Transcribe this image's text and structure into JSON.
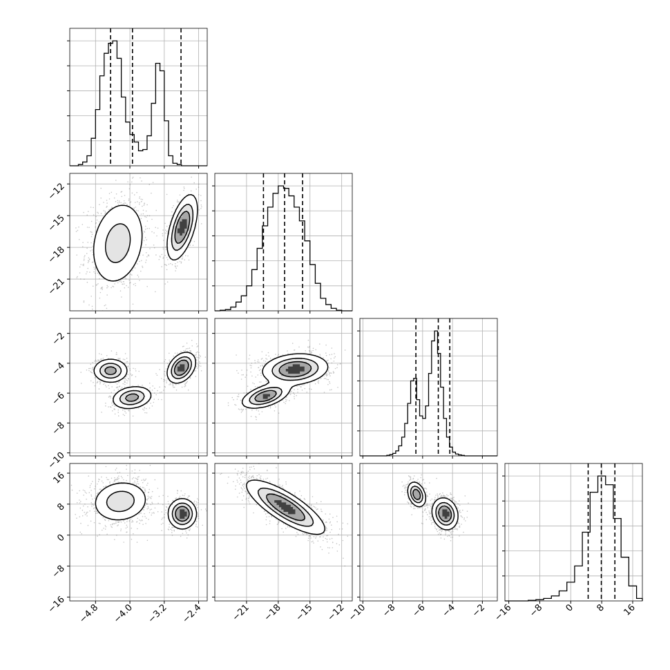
{
  "chart_data": {
    "type": "corner",
    "title": "",
    "grid": true,
    "parameters": [
      {
        "label": "",
        "range": [
          -5.4,
          -2.2
        ],
        "ticks": [
          -4.8,
          -4.0,
          -3.2,
          -2.4
        ],
        "tick_labels": [
          "−4.8",
          "−4.0",
          "−3.2",
          "−2.4"
        ]
      },
      {
        "label": "",
        "range": [
          -24.0,
          -11.0
        ],
        "ticks": [
          -21,
          -18,
          -15,
          -12
        ],
        "tick_labels": [
          "−21",
          "−18",
          "−15",
          "−12"
        ]
      },
      {
        "label": "",
        "range": [
          -10.2,
          -1.0
        ],
        "ticks": [
          -10,
          -8,
          -6,
          -4,
          -2
        ],
        "tick_labels": [
          "−10",
          "−8",
          "−6",
          "−4",
          "−2"
        ]
      },
      {
        "label": "",
        "range": [
          -17.0,
          18.5
        ],
        "ticks": [
          -16,
          -8,
          0,
          8,
          16
        ],
        "tick_labels": [
          "−16",
          "−8",
          "0",
          "8",
          "16"
        ]
      }
    ],
    "histograms": [
      {
        "param": 0,
        "bin_edges": [
          -5.4,
          -5.3,
          -5.2,
          -5.1,
          -5.0,
          -4.9,
          -4.8,
          -4.7,
          -4.6,
          -4.5,
          -4.4,
          -4.3,
          -4.2,
          -4.1,
          -4.0,
          -3.9,
          -3.8,
          -3.7,
          -3.6,
          -3.5,
          -3.4,
          -3.3,
          -3.2,
          -3.1,
          -3.0,
          -2.9,
          -2.8,
          -2.7,
          -2.6,
          -2.5,
          -2.4,
          -2.3,
          -2.2
        ],
        "counts": [
          0,
          0,
          0.01,
          0.03,
          0.08,
          0.22,
          0.45,
          0.72,
          0.9,
          0.98,
          1.0,
          0.86,
          0.55,
          0.35,
          0.25,
          0.19,
          0.12,
          0.13,
          0.24,
          0.5,
          0.82,
          0.76,
          0.36,
          0.08,
          0.02,
          0.01,
          0,
          0,
          0,
          0,
          0,
          0
        ],
        "quantiles": [
          -4.45,
          -3.94,
          -2.81
        ]
      },
      {
        "param": 1,
        "bin_edges": [
          -24.0,
          -23.5,
          -23.0,
          -22.5,
          -22.0,
          -21.5,
          -21.0,
          -20.5,
          -20.0,
          -19.5,
          -19.0,
          -18.5,
          -18.0,
          -17.5,
          -17.0,
          -16.5,
          -16.0,
          -15.5,
          -15.0,
          -14.5,
          -14.0,
          -13.5,
          -13.0,
          -12.5,
          -12.0,
          -11.5,
          -11.0
        ],
        "counts": [
          0,
          0.005,
          0.01,
          0.03,
          0.07,
          0.12,
          0.2,
          0.33,
          0.5,
          0.68,
          0.83,
          0.94,
          1.0,
          0.98,
          0.92,
          0.83,
          0.72,
          0.56,
          0.37,
          0.22,
          0.1,
          0.05,
          0.02,
          0.005,
          0,
          0
        ],
        "quantiles": [
          -19.4,
          -17.4,
          -15.7
        ]
      },
      {
        "param": 2,
        "bin_edges": [
          -10.2,
          -10.0,
          -9.8,
          -9.6,
          -9.4,
          -9.2,
          -9.0,
          -8.8,
          -8.6,
          -8.4,
          -8.2,
          -8.0,
          -7.8,
          -7.6,
          -7.4,
          -7.2,
          -7.0,
          -6.8,
          -6.6,
          -6.4,
          -6.2,
          -6.0,
          -5.8,
          -5.6,
          -5.4,
          -5.2,
          -5.0,
          -4.8,
          -4.6,
          -4.4,
          -4.2,
          -4.0,
          -3.8,
          -3.6,
          -3.4,
          -3.2,
          -3.0,
          -2.8,
          -2.6,
          -2.4,
          -2.2,
          -2.0,
          -1.8,
          -1.6,
          -1.4,
          -1.2,
          -1.0
        ],
        "counts": [
          0,
          0,
          0,
          0,
          0,
          0,
          0,
          0,
          0,
          0.005,
          0.01,
          0.02,
          0.04,
          0.08,
          0.15,
          0.26,
          0.42,
          0.6,
          0.62,
          0.45,
          0.32,
          0.3,
          0.4,
          0.66,
          0.92,
          1.0,
          0.82,
          0.55,
          0.3,
          0.15,
          0.07,
          0.03,
          0.015,
          0.008,
          0.004,
          0,
          0,
          0,
          0,
          0,
          0,
          0,
          0,
          0,
          0,
          0
        ],
        "quantiles": [
          -6.45,
          -4.95,
          -4.18
        ]
      },
      {
        "param": 3,
        "bin_edges": [
          -17.0,
          -15.0,
          -13.0,
          -11.0,
          -9.0,
          -7.0,
          -5.0,
          -3.0,
          -1.0,
          1.0,
          3.0,
          5.0,
          7.0,
          9.0,
          11.0,
          13.0,
          15.0,
          17.0,
          18.5
        ],
        "counts": [
          0,
          0,
          0,
          0.005,
          0.01,
          0.02,
          0.04,
          0.08,
          0.15,
          0.28,
          0.55,
          0.87,
          1.0,
          0.93,
          0.66,
          0.35,
          0.12,
          0.02
        ],
        "quantiles": [
          4.5,
          7.9,
          11.4
        ]
      }
    ],
    "pairs": [
      {
        "x_param": 0,
        "y_param": 1,
        "modes": [
          {
            "mx": -4.28,
            "my": -17.6,
            "sx": 0.33,
            "sy": 2.1,
            "rho": 0.2,
            "w": 0.62
          },
          {
            "mx": -2.78,
            "my": -16.1,
            "sx": 0.17,
            "sy": 1.5,
            "rho": 0.55,
            "w": 0.38
          }
        ]
      },
      {
        "x_param": 0,
        "y_param": 2,
        "modes": [
          {
            "mx": -4.45,
            "my": -4.5,
            "sx": 0.2,
            "sy": 0.4,
            "rho": 0.0,
            "w": 0.3
          },
          {
            "mx": -3.95,
            "my": -6.3,
            "sx": 0.23,
            "sy": 0.38,
            "rho": 0.2,
            "w": 0.32
          },
          {
            "mx": -2.8,
            "my": -4.3,
            "sx": 0.16,
            "sy": 0.5,
            "rho": 0.35,
            "w": 0.38
          }
        ]
      },
      {
        "x_param": 0,
        "y_param": 3,
        "modes": [
          {
            "mx": -4.22,
            "my": 8.7,
            "sx": 0.33,
            "sy": 2.7,
            "rho": 0.1,
            "w": 0.62
          },
          {
            "mx": -2.78,
            "my": 5.5,
            "sx": 0.16,
            "sy": 1.9,
            "rho": 0.0,
            "w": 0.38
          }
        ]
      },
      {
        "x_param": 1,
        "y_param": 2,
        "modes": [
          {
            "mx": -16.4,
            "my": -4.4,
            "sx": 1.5,
            "sy": 0.5,
            "rho": 0.15,
            "w": 0.68
          },
          {
            "mx": -19.2,
            "my": -6.2,
            "sx": 1.1,
            "sy": 0.4,
            "rho": 0.5,
            "w": 0.32
          }
        ]
      },
      {
        "x_param": 1,
        "y_param": 3,
        "modes": [
          {
            "mx": -17.3,
            "my": 7.2,
            "sx": 1.8,
            "sy": 3.4,
            "rho": -0.8,
            "w": 1.0
          }
        ]
      },
      {
        "x_param": 2,
        "y_param": 3,
        "modes": [
          {
            "mx": -6.4,
            "my": 10.5,
            "sx": 0.3,
            "sy": 1.6,
            "rho": -0.3,
            "w": 0.32
          },
          {
            "mx": -4.5,
            "my": 5.5,
            "sx": 0.42,
            "sy": 2.0,
            "rho": -0.15,
            "w": 0.68
          }
        ]
      }
    ]
  }
}
